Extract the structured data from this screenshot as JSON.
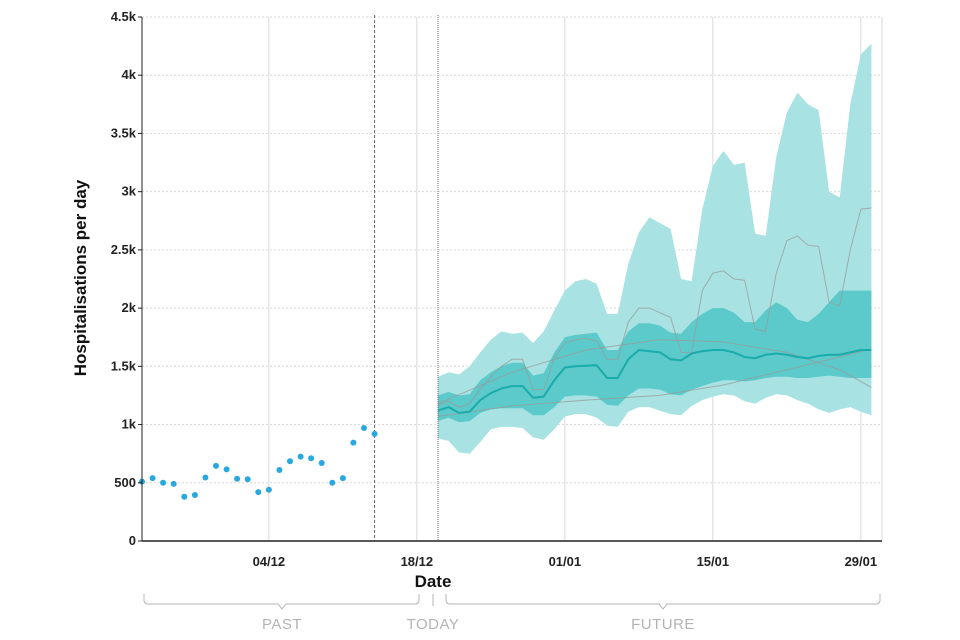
{
  "chart_data": {
    "type": "line",
    "xlabel": "Date",
    "ylabel": "Hospitalisations per day",
    "ylim": [
      0,
      4500
    ],
    "y_ticks": [
      0,
      500,
      1000,
      1500,
      2000,
      2500,
      3000,
      3500,
      4000,
      4500
    ],
    "y_tick_labels": [
      "0",
      "500",
      "1k",
      "1.5k",
      "2k",
      "2.5k",
      "3k",
      "3.5k",
      "4k",
      "4.5k"
    ],
    "x_day_range": [
      "2021-11-22",
      "2022-01-31"
    ],
    "x_ticks": [
      {
        "date": "2021-12-04",
        "label": "04/12"
      },
      {
        "date": "2021-12-18",
        "label": "18/12"
      },
      {
        "date": "2022-01-01",
        "label": "01/01"
      },
      {
        "date": "2022-01-15",
        "label": "15/01"
      },
      {
        "date": "2022-01-29",
        "label": "29/01"
      }
    ],
    "grid": true,
    "markers": {
      "last_data": "2021-12-14",
      "today": "2021-12-20"
    },
    "periods": {
      "past": "PAST",
      "today": "TODAY",
      "future": "FUTURE"
    },
    "colors": {
      "observed": "#29a8dd",
      "outer_band": "#a8e2e2",
      "inner_band": "#5ccaca",
      "median": "#1aabab",
      "scenario": "#999999",
      "grid": "#d9d9d9",
      "marker": "#666666"
    },
    "series": [
      {
        "kind": "observed",
        "dates": [
          "2021-11-22",
          "2021-11-23",
          "2021-11-24",
          "2021-11-25",
          "2021-11-26",
          "2021-11-27",
          "2021-11-28",
          "2021-11-29",
          "2021-11-30",
          "2021-12-01",
          "2021-12-02",
          "2021-12-03",
          "2021-12-04",
          "2021-12-05",
          "2021-12-06",
          "2021-12-07",
          "2021-12-08",
          "2021-12-09",
          "2021-12-10",
          "2021-12-11",
          "2021-12-12",
          "2021-12-13",
          "2021-12-14"
        ],
        "values": [
          510,
          540,
          500,
          490,
          380,
          395,
          545,
          645,
          615,
          535,
          530,
          420,
          440,
          610,
          685,
          725,
          710,
          670,
          500,
          540,
          845,
          970,
          920
        ]
      },
      {
        "kind": "median",
        "dates": [
          "2021-12-20",
          "2021-12-21",
          "2021-12-22",
          "2021-12-23",
          "2021-12-24",
          "2021-12-25",
          "2021-12-26",
          "2021-12-27",
          "2021-12-28",
          "2021-12-29",
          "2021-12-30",
          "2021-12-31",
          "2022-01-01",
          "2022-01-02",
          "2022-01-03",
          "2022-01-04",
          "2022-01-05",
          "2022-01-06",
          "2022-01-07",
          "2022-01-08",
          "2022-01-09",
          "2022-01-10",
          "2022-01-11",
          "2022-01-12",
          "2022-01-13",
          "2022-01-14",
          "2022-01-15",
          "2022-01-16",
          "2022-01-17",
          "2022-01-18",
          "2022-01-19",
          "2022-01-20",
          "2022-01-21",
          "2022-01-22",
          "2022-01-23",
          "2022-01-24",
          "2022-01-25",
          "2022-01-26",
          "2022-01-27",
          "2022-01-28",
          "2022-01-29",
          "2022-01-30"
        ],
        "values": [
          1120,
          1150,
          1100,
          1110,
          1210,
          1270,
          1310,
          1330,
          1330,
          1230,
          1240,
          1380,
          1490,
          1500,
          1505,
          1510,
          1400,
          1400,
          1560,
          1640,
          1630,
          1620,
          1560,
          1550,
          1610,
          1630,
          1640,
          1640,
          1620,
          1580,
          1570,
          1600,
          1610,
          1600,
          1580,
          1570,
          1590,
          1600,
          1600,
          1620,
          1640,
          1640
        ]
      },
      {
        "kind": "band_inner",
        "dates": [
          "2021-12-20",
          "2021-12-21",
          "2021-12-22",
          "2021-12-23",
          "2021-12-24",
          "2021-12-25",
          "2021-12-26",
          "2021-12-27",
          "2021-12-28",
          "2021-12-29",
          "2021-12-30",
          "2021-12-31",
          "2022-01-01",
          "2022-01-02",
          "2022-01-03",
          "2022-01-04",
          "2022-01-05",
          "2022-01-06",
          "2022-01-07",
          "2022-01-08",
          "2022-01-09",
          "2022-01-10",
          "2022-01-11",
          "2022-01-12",
          "2022-01-13",
          "2022-01-14",
          "2022-01-15",
          "2022-01-16",
          "2022-01-17",
          "2022-01-18",
          "2022-01-19",
          "2022-01-20",
          "2022-01-21",
          "2022-01-22",
          "2022-01-23",
          "2022-01-24",
          "2022-01-25",
          "2022-01-26",
          "2022-01-27",
          "2022-01-28",
          "2022-01-29",
          "2022-01-30"
        ],
        "lower": [
          1030,
          1060,
          1020,
          1030,
          1100,
          1130,
          1140,
          1140,
          1140,
          1080,
          1080,
          1150,
          1240,
          1250,
          1250,
          1240,
          1170,
          1160,
          1250,
          1310,
          1310,
          1300,
          1260,
          1250,
          1300,
          1330,
          1360,
          1380,
          1380,
          1370,
          1380,
          1400,
          1410,
          1410,
          1400,
          1400,
          1410,
          1420,
          1410,
          1400,
          1400,
          1400
        ],
        "upper": [
          1250,
          1280,
          1250,
          1260,
          1380,
          1450,
          1500,
          1530,
          1530,
          1420,
          1440,
          1620,
          1750,
          1770,
          1780,
          1790,
          1640,
          1640,
          1800,
          1870,
          1870,
          1850,
          1790,
          1780,
          1880,
          1950,
          2000,
          2000,
          1960,
          1880,
          1880,
          1980,
          2050,
          2000,
          1900,
          1880,
          1950,
          2050,
          2150,
          2150,
          2150,
          2150
        ]
      },
      {
        "kind": "band_outer",
        "dates": [
          "2021-12-20",
          "2021-12-21",
          "2021-12-22",
          "2021-12-23",
          "2021-12-24",
          "2021-12-25",
          "2021-12-26",
          "2021-12-27",
          "2021-12-28",
          "2021-12-29",
          "2021-12-30",
          "2021-12-31",
          "2022-01-01",
          "2022-01-02",
          "2022-01-03",
          "2022-01-04",
          "2022-01-05",
          "2022-01-06",
          "2022-01-07",
          "2022-01-08",
          "2022-01-09",
          "2022-01-10",
          "2022-01-11",
          "2022-01-12",
          "2022-01-13",
          "2022-01-14",
          "2022-01-15",
          "2022-01-16",
          "2022-01-17",
          "2022-01-18",
          "2022-01-19",
          "2022-01-20",
          "2022-01-21",
          "2022-01-22",
          "2022-01-23",
          "2022-01-24",
          "2022-01-25",
          "2022-01-26",
          "2022-01-27",
          "2022-01-28",
          "2022-01-29",
          "2022-01-30"
        ],
        "lower": [
          880,
          860,
          760,
          750,
          850,
          960,
          980,
          980,
          970,
          890,
          870,
          960,
          1070,
          1090,
          1090,
          1060,
          990,
          980,
          1110,
          1150,
          1150,
          1120,
          1090,
          1080,
          1160,
          1210,
          1240,
          1260,
          1250,
          1200,
          1180,
          1230,
          1260,
          1250,
          1210,
          1180,
          1130,
          1100,
          1130,
          1150,
          1110,
          1080
        ],
        "upper": [
          1410,
          1450,
          1430,
          1500,
          1620,
          1730,
          1800,
          1780,
          1790,
          1700,
          1800,
          1980,
          2150,
          2230,
          2250,
          2210,
          1950,
          1950,
          2380,
          2650,
          2780,
          2730,
          2680,
          2250,
          2230,
          2850,
          3220,
          3350,
          3230,
          3250,
          2640,
          2620,
          3300,
          3680,
          3850,
          3750,
          3700,
          3000,
          2950,
          3750,
          4180,
          4270
        ]
      },
      {
        "kind": "scenario",
        "dates": [
          "2021-12-20",
          "2021-12-21",
          "2021-12-22",
          "2021-12-23",
          "2021-12-24",
          "2021-12-25",
          "2021-12-26",
          "2021-12-27",
          "2021-12-28",
          "2021-12-29",
          "2021-12-30",
          "2021-12-31",
          "2022-01-01",
          "2022-01-02",
          "2022-01-03",
          "2022-01-04",
          "2022-01-05",
          "2022-01-06",
          "2022-01-07",
          "2022-01-08",
          "2022-01-09",
          "2022-01-10",
          "2022-01-11",
          "2022-01-12",
          "2022-01-13",
          "2022-01-14",
          "2022-01-15",
          "2022-01-16",
          "2022-01-17",
          "2022-01-18",
          "2022-01-19",
          "2022-01-20",
          "2022-01-21",
          "2022-01-22",
          "2022-01-23",
          "2022-01-24",
          "2022-01-25",
          "2022-01-26",
          "2022-01-27",
          "2022-01-28",
          "2022-01-29",
          "2022-01-30"
        ],
        "values": [
          1170,
          1200,
          1150,
          1180,
          1300,
          1410,
          1500,
          1560,
          1560,
          1300,
          1300,
          1570,
          1700,
          1730,
          1740,
          1720,
          1560,
          1560,
          1880,
          2000,
          2000,
          1960,
          1920,
          1620,
          1620,
          2150,
          2300,
          2320,
          2250,
          2240,
          1820,
          1800,
          2300,
          2580,
          2620,
          2540,
          2530,
          2050,
          2020,
          2500,
          2850,
          2860
        ]
      },
      {
        "kind": "scenario",
        "dates": [
          "2021-12-20",
          "2021-12-27",
          "2022-01-03",
          "2022-01-10",
          "2022-01-16",
          "2022-01-22",
          "2022-01-27",
          "2022-01-30"
        ],
        "values": [
          1180,
          1450,
          1640,
          1730,
          1710,
          1620,
          1470,
          1320
        ]
      },
      {
        "kind": "scenario",
        "dates": [
          "2021-12-20",
          "2021-12-27",
          "2022-01-03",
          "2022-01-10",
          "2022-01-16",
          "2022-01-22",
          "2022-01-27",
          "2022-01-30"
        ],
        "values": [
          1070,
          1160,
          1210,
          1250,
          1340,
          1470,
          1580,
          1650
        ]
      }
    ]
  }
}
